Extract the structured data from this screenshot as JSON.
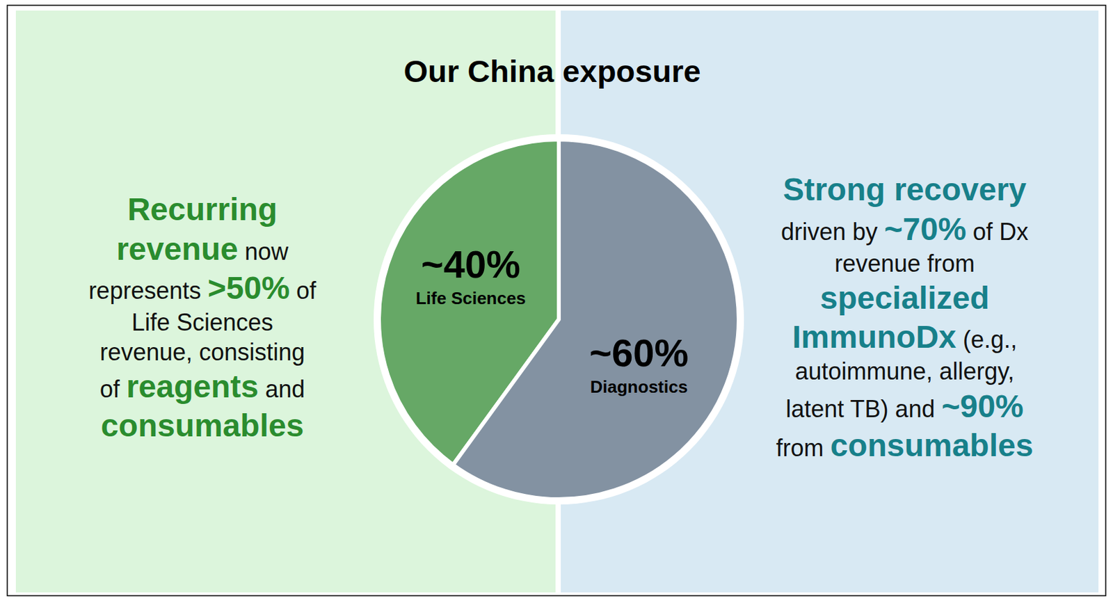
{
  "chart_data": {
    "type": "pie",
    "title": "Our China exposure",
    "categories": [
      "Life Sciences",
      "Diagnostics"
    ],
    "values": [
      40,
      60
    ],
    "value_labels": [
      "~40%",
      "~60%"
    ],
    "colors": [
      "#66a866",
      "#8392a2"
    ],
    "data_labels": true,
    "annotations": [
      {
        "color": "#2a8c2e",
        "lines": [
          [
            {
              "text": "Recurring",
              "emphasis": true
            }
          ],
          [
            {
              "text": "revenue",
              "emphasis": true
            },
            {
              "text": " now",
              "emphasis": false
            }
          ],
          [
            {
              "text": "represents ",
              "emphasis": false
            },
            {
              "text": ">50%",
              "emphasis": true
            },
            {
              "text": " of",
              "emphasis": false
            }
          ],
          [
            {
              "text": "Life Sciences",
              "emphasis": false
            }
          ],
          [
            {
              "text": "revenue, consisting",
              "emphasis": false
            }
          ],
          [
            {
              "text": "of ",
              "emphasis": false
            },
            {
              "text": "reagents",
              "emphasis": true
            },
            {
              "text": " and",
              "emphasis": false
            }
          ],
          [
            {
              "text": "consumables",
              "emphasis": true
            }
          ]
        ]
      },
      {
        "color": "#17808a",
        "lines": [
          [
            {
              "text": "Strong recovery",
              "emphasis": true
            }
          ],
          [
            {
              "text": "driven by ",
              "emphasis": false
            },
            {
              "text": "~70%",
              "emphasis": true
            },
            {
              "text": " of Dx",
              "emphasis": false
            }
          ],
          [
            {
              "text": "revenue from",
              "emphasis": false
            }
          ],
          [
            {
              "text": "specialized",
              "emphasis": true
            }
          ],
          [
            {
              "text": "ImmunoDx",
              "emphasis": true
            },
            {
              "text": " (e.g.,",
              "emphasis": false
            }
          ],
          [
            {
              "text": "autoimmune, allergy,",
              "emphasis": false
            }
          ],
          [
            {
              "text": "latent TB) and ",
              "emphasis": false
            },
            {
              "text": "~90%",
              "emphasis": true
            }
          ],
          [
            {
              "text": "from ",
              "emphasis": false
            },
            {
              "text": "consumables",
              "emphasis": true
            }
          ]
        ]
      }
    ]
  }
}
